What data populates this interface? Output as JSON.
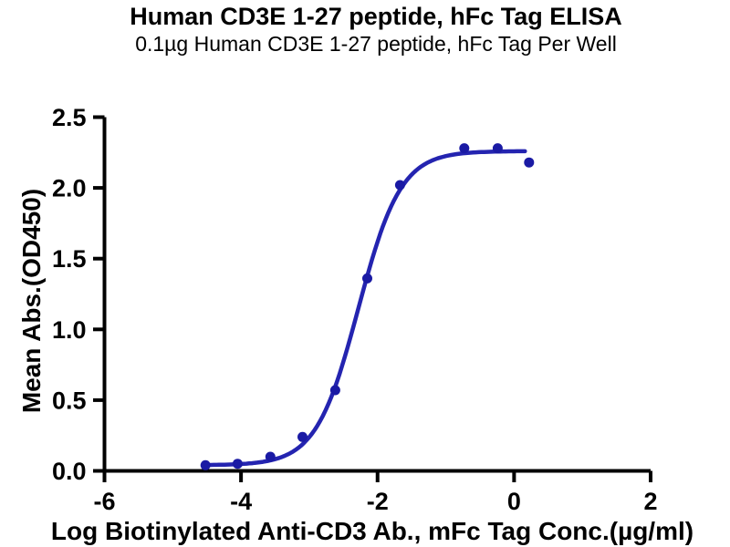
{
  "chart_data": {
    "type": "scatter",
    "title": "Human CD3E 1-27 peptide, hFc Tag ELISA",
    "subtitle": "0.1µg Human CD3E 1-27 peptide, hFc Tag Per Well",
    "xlabel": "Log Biotinylated Anti-CD3 Ab., mFc Tag Conc.(µg/ml)",
    "ylabel": "Mean Abs.(OD450)",
    "x": [
      -4.52,
      -4.05,
      -3.57,
      -3.1,
      -2.62,
      -2.15,
      -1.67,
      -0.73,
      -0.24,
      0.22
    ],
    "y": [
      0.04,
      0.05,
      0.1,
      0.24,
      0.57,
      1.36,
      2.02,
      2.28,
      2.28,
      2.18
    ],
    "xlim": [
      -6,
      2
    ],
    "ylim": [
      0,
      2.5
    ],
    "x_ticks": [
      {
        "value": -6,
        "label": "-6"
      },
      {
        "value": -4,
        "label": "-4"
      },
      {
        "value": -2,
        "label": "-2"
      },
      {
        "value": 0,
        "label": "0"
      },
      {
        "value": 2,
        "label": "2"
      }
    ],
    "y_ticks": [
      {
        "value": 0.0,
        "label": "0.0"
      },
      {
        "value": 0.5,
        "label": "0.5"
      },
      {
        "value": 1.0,
        "label": "1.0"
      },
      {
        "value": 1.5,
        "label": "1.5"
      },
      {
        "value": 2.0,
        "label": "2.0"
      },
      {
        "value": 2.5,
        "label": "2.5"
      }
    ],
    "curve_fit": {
      "model": "4PL",
      "bottom": 0.04,
      "top": 2.26,
      "log_ec50": -2.28,
      "hill_slope": 1.4,
      "x_start": -4.52,
      "x_end": 0.18
    },
    "grid": false,
    "legend": "none",
    "colors": {
      "curve": "#2424b0",
      "marker": "#1a1aa4",
      "axis": "#000000",
      "text": "#000000",
      "background": "#ffffff"
    }
  }
}
